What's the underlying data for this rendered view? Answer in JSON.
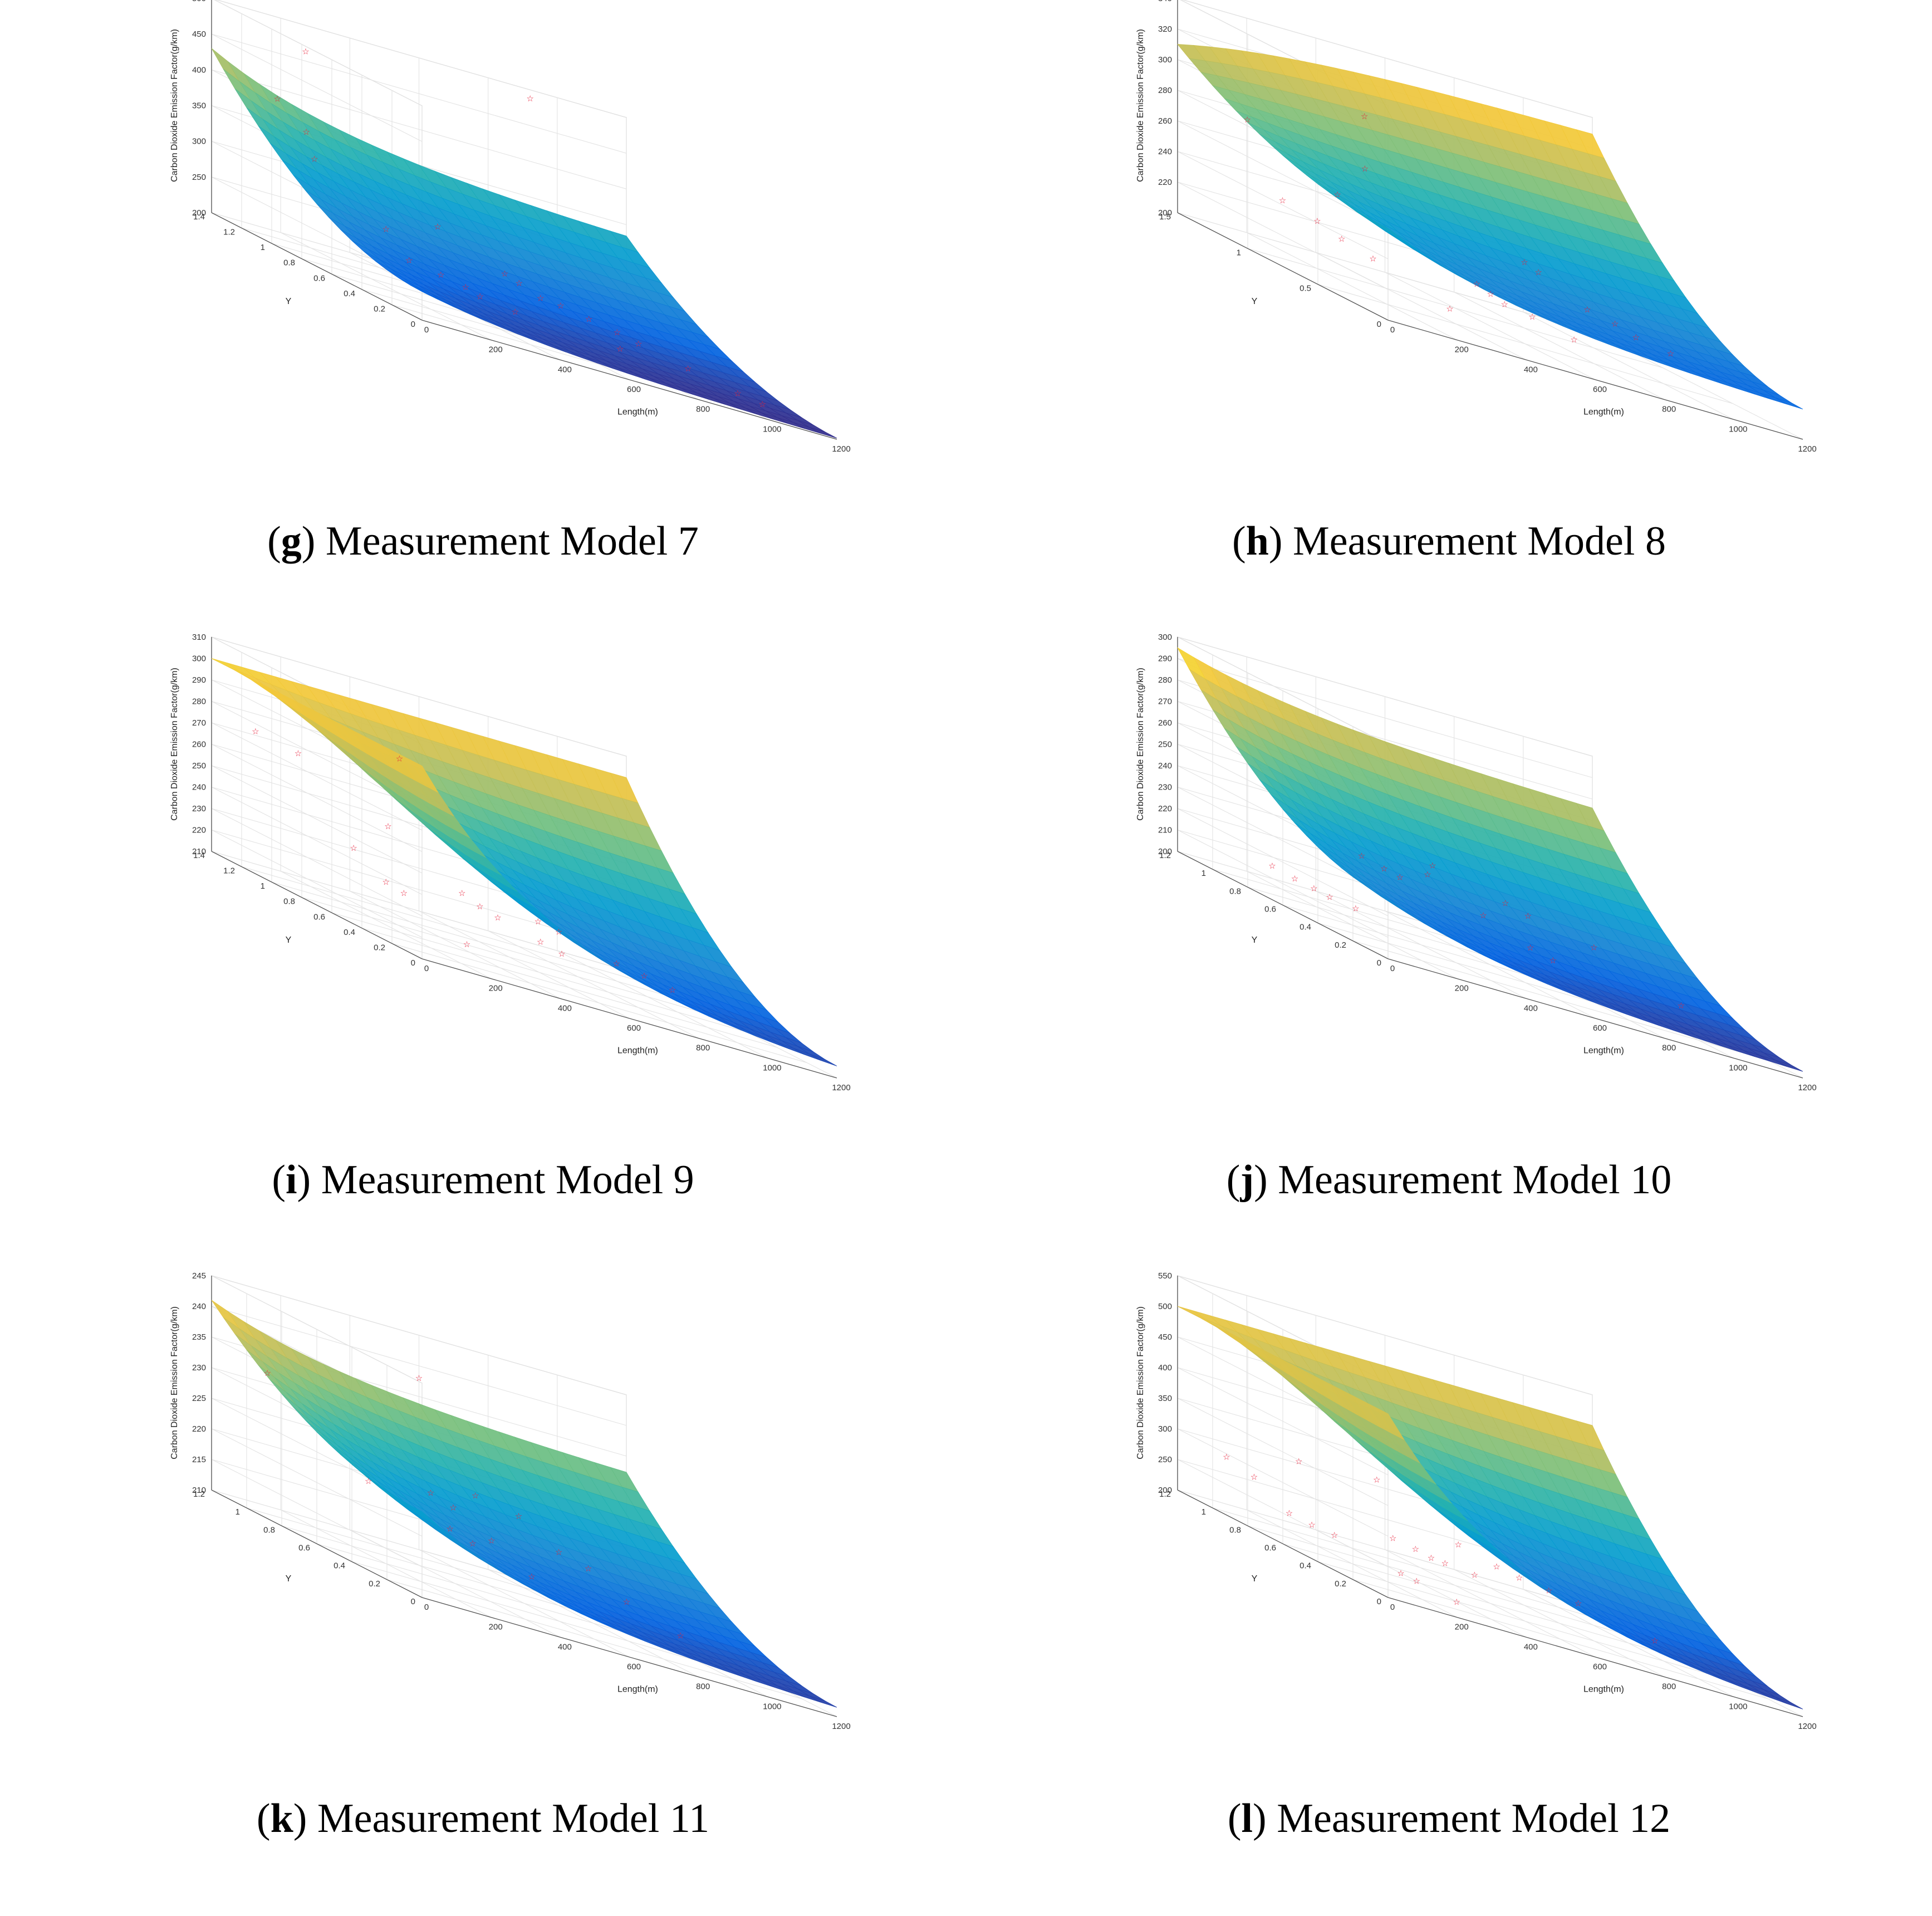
{
  "chart_data": [
    {
      "type": "surface",
      "panel_letter": "g",
      "caption": "Measurement Model 7",
      "xlabel": "Length(m)",
      "ylabel": "Y",
      "zlabel": "Carbon Dioxide Emission Factor(g/km)",
      "xlim": [
        0,
        1200
      ],
      "ylim": [
        0,
        1.4
      ],
      "zlim": [
        200,
        500
      ],
      "x_ticks": [
        "0",
        "200",
        "400",
        "600",
        "800",
        "1000",
        "1200"
      ],
      "y_ticks": [
        "0",
        "0.2",
        "0.4",
        "0.6",
        "0.8",
        "1",
        "1.2",
        "1.4"
      ],
      "z_ticks": [
        "200",
        "250",
        "300",
        "350",
        "400",
        "450",
        "500"
      ],
      "surface_corners": {
        "x0_ymax": 430,
        "x0_ymin": 240,
        "xmax_ymax": 330,
        "xmax_ymin": 200
      },
      "points": [
        {
          "x": 120,
          "y": 1.05,
          "z": 480
        },
        {
          "x": 900,
          "y": 1.35,
          "z": 490
        },
        {
          "x": 60,
          "y": 1.1,
          "z": 400
        },
        {
          "x": 100,
          "y": 1.0,
          "z": 370
        },
        {
          "x": 80,
          "y": 0.9,
          "z": 340
        },
        {
          "x": 200,
          "y": 0.7,
          "z": 280
        },
        {
          "x": 180,
          "y": 0.5,
          "z": 255
        },
        {
          "x": 250,
          "y": 0.45,
          "z": 250
        },
        {
          "x": 300,
          "y": 0.4,
          "z": 245
        },
        {
          "x": 320,
          "y": 0.35,
          "z": 240
        },
        {
          "x": 400,
          "y": 0.3,
          "z": 235
        },
        {
          "x": 500,
          "y": 0.6,
          "z": 270
        },
        {
          "x": 520,
          "y": 0.55,
          "z": 265
        },
        {
          "x": 560,
          "y": 0.5,
          "z": 255
        },
        {
          "x": 640,
          "y": 0.55,
          "z": 250
        },
        {
          "x": 700,
          "y": 0.5,
          "z": 245
        },
        {
          "x": 760,
          "y": 0.45,
          "z": 240
        },
        {
          "x": 800,
          "y": 0.4,
          "z": 235
        },
        {
          "x": 900,
          "y": 0.3,
          "z": 225
        },
        {
          "x": 1000,
          "y": 0.2,
          "z": 215
        },
        {
          "x": 1050,
          "y": 0.15,
          "z": 212
        },
        {
          "x": 660,
          "y": 0.2,
          "z": 230
        },
        {
          "x": 480,
          "y": 1.0,
          "z": 290
        }
      ]
    },
    {
      "type": "surface",
      "panel_letter": "h",
      "caption": "Measurement Model 8",
      "xlabel": "Length(m)",
      "ylabel": "Y",
      "zlabel": "Carbon Dioxide Emission Factor(g/km)",
      "xlim": [
        0,
        1200
      ],
      "ylim": [
        0,
        1.5
      ],
      "zlim": [
        200,
        340
      ],
      "x_ticks": [
        "0",
        "200",
        "400",
        "600",
        "800",
        "1000",
        "1200"
      ],
      "y_ticks": [
        "0",
        "0.5",
        "1",
        "1.5"
      ],
      "z_ticks": [
        "200",
        "220",
        "240",
        "260",
        "280",
        "300",
        "320",
        "340"
      ],
      "surface_corners": {
        "x0_ymax": 310,
        "x0_ymin": 260,
        "xmax_ymax": 330,
        "xmax_ymin": 218
      },
      "points": [
        {
          "x": 80,
          "y": 1.2,
          "z": 280
        },
        {
          "x": 500,
          "y": 1.4,
          "z": 300
        },
        {
          "x": 420,
          "y": 1.2,
          "z": 270
        },
        {
          "x": 300,
          "y": 1.1,
          "z": 250
        },
        {
          "x": 60,
          "y": 0.9,
          "z": 240
        },
        {
          "x": 120,
          "y": 0.8,
          "z": 235
        },
        {
          "x": 150,
          "y": 0.7,
          "z": 230
        },
        {
          "x": 200,
          "y": 0.6,
          "z": 225
        },
        {
          "x": 260,
          "y": 0.2,
          "z": 215
        },
        {
          "x": 500,
          "y": 0.6,
          "z": 228
        },
        {
          "x": 520,
          "y": 0.55,
          "z": 225
        },
        {
          "x": 540,
          "y": 0.5,
          "z": 222
        },
        {
          "x": 600,
          "y": 0.45,
          "z": 220
        },
        {
          "x": 660,
          "y": 0.3,
          "z": 216
        },
        {
          "x": 760,
          "y": 0.9,
          "z": 245
        },
        {
          "x": 780,
          "y": 0.85,
          "z": 242
        },
        {
          "x": 820,
          "y": 0.6,
          "z": 232
        },
        {
          "x": 900,
          "y": 0.6,
          "z": 228
        },
        {
          "x": 920,
          "y": 0.5,
          "z": 225
        },
        {
          "x": 1000,
          "y": 0.45,
          "z": 222
        }
      ]
    },
    {
      "type": "surface",
      "panel_letter": "i",
      "caption": "Measurement Model 9",
      "xlabel": "Length(m)",
      "ylabel": "Y",
      "zlabel": "Carbon Dioxide Emission Factor(g/km)",
      "xlim": [
        0,
        1200
      ],
      "ylim": [
        0,
        1.4
      ],
      "zlim": [
        210,
        310
      ],
      "x_ticks": [
        "0",
        "200",
        "400",
        "600",
        "800",
        "1000",
        "1200"
      ],
      "y_ticks": [
        "0",
        "0.2",
        "0.4",
        "0.6",
        "0.8",
        "1",
        "1.2",
        "1.4"
      ],
      "z_ticks": [
        "210",
        "220",
        "230",
        "240",
        "250",
        "260",
        "270",
        "280",
        "290",
        "300",
        "310"
      ],
      "surface_corners": {
        "x0_ymax": 300,
        "x0_ymin": 300,
        "xmax_ymax": 300,
        "xmax_ymin": 212
      },
      "points": [
        {
          "x": 40,
          "y": 1.2,
          "z": 275
        },
        {
          "x": 120,
          "y": 1.1,
          "z": 272
        },
        {
          "x": 500,
          "y": 1.3,
          "z": 280
        },
        {
          "x": 380,
          "y": 1.1,
          "z": 250
        },
        {
          "x": 150,
          "y": 0.8,
          "z": 240
        },
        {
          "x": 200,
          "y": 0.7,
          "z": 230
        },
        {
          "x": 230,
          "y": 0.65,
          "z": 228
        },
        {
          "x": 260,
          "y": 0.3,
          "z": 218
        },
        {
          "x": 420,
          "y": 0.7,
          "z": 235
        },
        {
          "x": 450,
          "y": 0.65,
          "z": 232
        },
        {
          "x": 480,
          "y": 0.6,
          "z": 230
        },
        {
          "x": 560,
          "y": 0.5,
          "z": 226
        },
        {
          "x": 600,
          "y": 0.45,
          "z": 224
        },
        {
          "x": 640,
          "y": 0.7,
          "z": 232
        },
        {
          "x": 700,
          "y": 0.7,
          "z": 230
        },
        {
          "x": 780,
          "y": 0.5,
          "z": 226
        },
        {
          "x": 860,
          "y": 0.5,
          "z": 224
        },
        {
          "x": 920,
          "y": 0.45,
          "z": 222
        }
      ]
    },
    {
      "type": "surface",
      "panel_letter": "j",
      "caption": "Measurement Model 10",
      "xlabel": "Length(m)",
      "ylabel": "Y",
      "zlabel": "Carbon Dioxide Emission Factor(g/km)",
      "xlim": [
        0,
        1200
      ],
      "ylim": [
        0,
        1.2
      ],
      "zlim": [
        200,
        300
      ],
      "x_ticks": [
        "0",
        "200",
        "400",
        "600",
        "800",
        "1000",
        "1200"
      ],
      "y_ticks": [
        "0",
        "0.2",
        "0.4",
        "0.6",
        "0.8",
        "1",
        "1.2"
      ],
      "z_ticks": [
        "200",
        "210",
        "220",
        "230",
        "240",
        "250",
        "260",
        "270",
        "280",
        "290",
        "300"
      ],
      "surface_corners": {
        "x0_ymax": 295,
        "x0_ymin": 228,
        "xmax_ymax": 275,
        "xmax_ymin": 202
      },
      "points": [
        {
          "x": 20,
          "y": 0.7,
          "z": 215
        },
        {
          "x": 60,
          "y": 0.65,
          "z": 213
        },
        {
          "x": 90,
          "y": 0.6,
          "z": 212
        },
        {
          "x": 110,
          "y": 0.55,
          "z": 211
        },
        {
          "x": 160,
          "y": 0.5,
          "z": 210
        },
        {
          "x": 380,
          "y": 0.9,
          "z": 228
        },
        {
          "x": 420,
          "y": 0.85,
          "z": 226
        },
        {
          "x": 440,
          "y": 0.8,
          "z": 225
        },
        {
          "x": 520,
          "y": 0.8,
          "z": 230
        },
        {
          "x": 560,
          "y": 0.85,
          "z": 234
        },
        {
          "x": 580,
          "y": 0.6,
          "z": 222
        },
        {
          "x": 640,
          "y": 0.45,
          "z": 216
        },
        {
          "x": 680,
          "y": 0.4,
          "z": 214
        },
        {
          "x": 720,
          "y": 0.75,
          "z": 228
        },
        {
          "x": 760,
          "y": 0.7,
          "z": 226
        },
        {
          "x": 900,
          "y": 0.6,
          "z": 222
        },
        {
          "x": 1000,
          "y": 0.3,
          "z": 212
        }
      ]
    },
    {
      "type": "surface",
      "panel_letter": "k",
      "caption": "Measurement Model 11",
      "xlabel": "Length(m)",
      "ylabel": "Y",
      "zlabel": "Carbon Dioxide Emission Factor(g/km)",
      "xlim": [
        0,
        1200
      ],
      "ylim": [
        0,
        1.2
      ],
      "zlim": [
        210,
        245
      ],
      "x_ticks": [
        "0",
        "200",
        "400",
        "600",
        "800",
        "1000",
        "1200"
      ],
      "y_ticks": [
        "0",
        "0.2",
        "0.4",
        "0.6",
        "0.8",
        "1",
        "1.2"
      ],
      "z_ticks": [
        "210",
        "215",
        "220",
        "225",
        "230",
        "235",
        "240",
        "245"
      ],
      "surface_corners": {
        "x0_ymax": 241,
        "x0_ymin": 224,
        "xmax_ymax": 232,
        "xmax_ymin": 211
      },
      "points": [
        {
          "x": 60,
          "y": 1.0,
          "z": 233
        },
        {
          "x": 600,
          "y": 1.2,
          "z": 238
        },
        {
          "x": 200,
          "y": 0.7,
          "z": 222
        },
        {
          "x": 380,
          "y": 0.7,
          "z": 223
        },
        {
          "x": 420,
          "y": 0.65,
          "z": 222
        },
        {
          "x": 360,
          "y": 0.55,
          "z": 219
        },
        {
          "x": 400,
          "y": 0.5,
          "z": 218
        },
        {
          "x": 480,
          "y": 0.55,
          "z": 219
        },
        {
          "x": 520,
          "y": 0.4,
          "z": 216
        },
        {
          "x": 560,
          "y": 0.8,
          "z": 224
        },
        {
          "x": 660,
          "y": 0.75,
          "z": 223
        },
        {
          "x": 700,
          "y": 0.6,
          "z": 220
        },
        {
          "x": 760,
          "y": 0.55,
          "z": 219
        },
        {
          "x": 820,
          "y": 0.45,
          "z": 216
        },
        {
          "x": 900,
          "y": 0.3,
          "z": 214
        }
      ]
    },
    {
      "type": "surface",
      "panel_letter": "l",
      "caption": "Measurement Model 12",
      "xlabel": "Length(m)",
      "ylabel": "Y",
      "zlabel": "Carbon Dioxide Emission Factor(g/km)",
      "xlim": [
        0,
        1200
      ],
      "ylim": [
        0,
        1.2
      ],
      "zlim": [
        200,
        550
      ],
      "x_ticks": [
        "0",
        "200",
        "400",
        "600",
        "800",
        "1000",
        "1200"
      ],
      "y_ticks": [
        "0",
        "0.2",
        "0.4",
        "0.6",
        "0.8",
        "1",
        "1.2"
      ],
      "z_ticks": [
        "200",
        "250",
        "300",
        "350",
        "400",
        "450",
        "500",
        "550"
      ],
      "surface_corners": {
        "x0_ymax": 500,
        "x0_ymin": 500,
        "xmax_ymax": 500,
        "xmax_ymin": 200
      },
      "points": [
        {
          "x": 40,
          "y": 1.0,
          "z": 290
        },
        {
          "x": 120,
          "y": 1.0,
          "z": 270
        },
        {
          "x": 300,
          "y": 1.1,
          "z": 310
        },
        {
          "x": 500,
          "y": 1.05,
          "z": 320
        },
        {
          "x": 120,
          "y": 0.8,
          "z": 240
        },
        {
          "x": 160,
          "y": 0.75,
          "z": 235
        },
        {
          "x": 200,
          "y": 0.7,
          "z": 232
        },
        {
          "x": 240,
          "y": 0.4,
          "z": 220
        },
        {
          "x": 260,
          "y": 0.35,
          "z": 218
        },
        {
          "x": 300,
          "y": 0.2,
          "z": 212
        },
        {
          "x": 420,
          "y": 0.8,
          "z": 248
        },
        {
          "x": 460,
          "y": 0.75,
          "z": 244
        },
        {
          "x": 480,
          "y": 0.7,
          "z": 240
        },
        {
          "x": 520,
          "y": 0.7,
          "z": 238
        },
        {
          "x": 580,
          "y": 0.65,
          "z": 236
        },
        {
          "x": 660,
          "y": 0.9,
          "z": 262
        },
        {
          "x": 720,
          "y": 0.8,
          "z": 250
        },
        {
          "x": 760,
          "y": 0.75,
          "z": 246
        },
        {
          "x": 820,
          "y": 0.7,
          "z": 242
        },
        {
          "x": 880,
          "y": 0.65,
          "z": 238
        },
        {
          "x": 1000,
          "y": 0.45,
          "z": 226
        }
      ]
    }
  ]
}
